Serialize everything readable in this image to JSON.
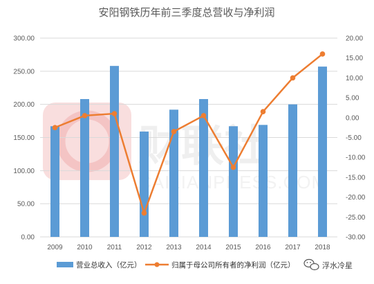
{
  "chart_data": {
    "type": "bar+line",
    "title": "安阳钢铁历年前三季度总营收与净利润",
    "categories": [
      "2009",
      "2010",
      "2011",
      "2012",
      "2013",
      "2014",
      "2015",
      "2016",
      "2017",
      "2018"
    ],
    "series": [
      {
        "name": "营业总收入（亿元）",
        "type": "bar",
        "axis": "left",
        "color": "#5b9bd5",
        "values": [
          167,
          208,
          258,
          159,
          192,
          208,
          167,
          169,
          200,
          257
        ]
      },
      {
        "name": "归属于母公司所有者的净利润（亿元）",
        "type": "line",
        "axis": "right",
        "color": "#ed7d31",
        "values": [
          -2.5,
          0.5,
          1.0,
          -24.0,
          -3.5,
          0.5,
          -12.5,
          1.5,
          10.0,
          16.0
        ]
      }
    ],
    "y_left": {
      "lim": [
        0,
        300
      ],
      "ticks": [
        "0.00",
        "50.00",
        "100.00",
        "150.00",
        "200.00",
        "250.00",
        "300.00"
      ]
    },
    "y_right": {
      "lim": [
        -30,
        20
      ],
      "ticks": [
        "-30.00",
        "-25.00",
        "-20.00",
        "-15.00",
        "-10.00",
        "-5.00",
        "0.00",
        "5.00",
        "10.00",
        "15.00",
        "20.00"
      ]
    },
    "grid": true,
    "legend_position": "bottom"
  },
  "legend": {
    "bar_label": "营业总收入（亿元）",
    "line_label": "归属于母公司所有者的净利润（亿元）"
  },
  "watermark": {
    "brand_cn": "财联社",
    "brand_en": "CAILIANPRESS.COM"
  },
  "source_badge": {
    "label": "浮水冷星",
    "icon": "wechat-icon"
  },
  "colors": {
    "bar": "#5b9bd5",
    "line": "#ed7d31",
    "grid": "#d9d9d9",
    "text": "#595959"
  }
}
